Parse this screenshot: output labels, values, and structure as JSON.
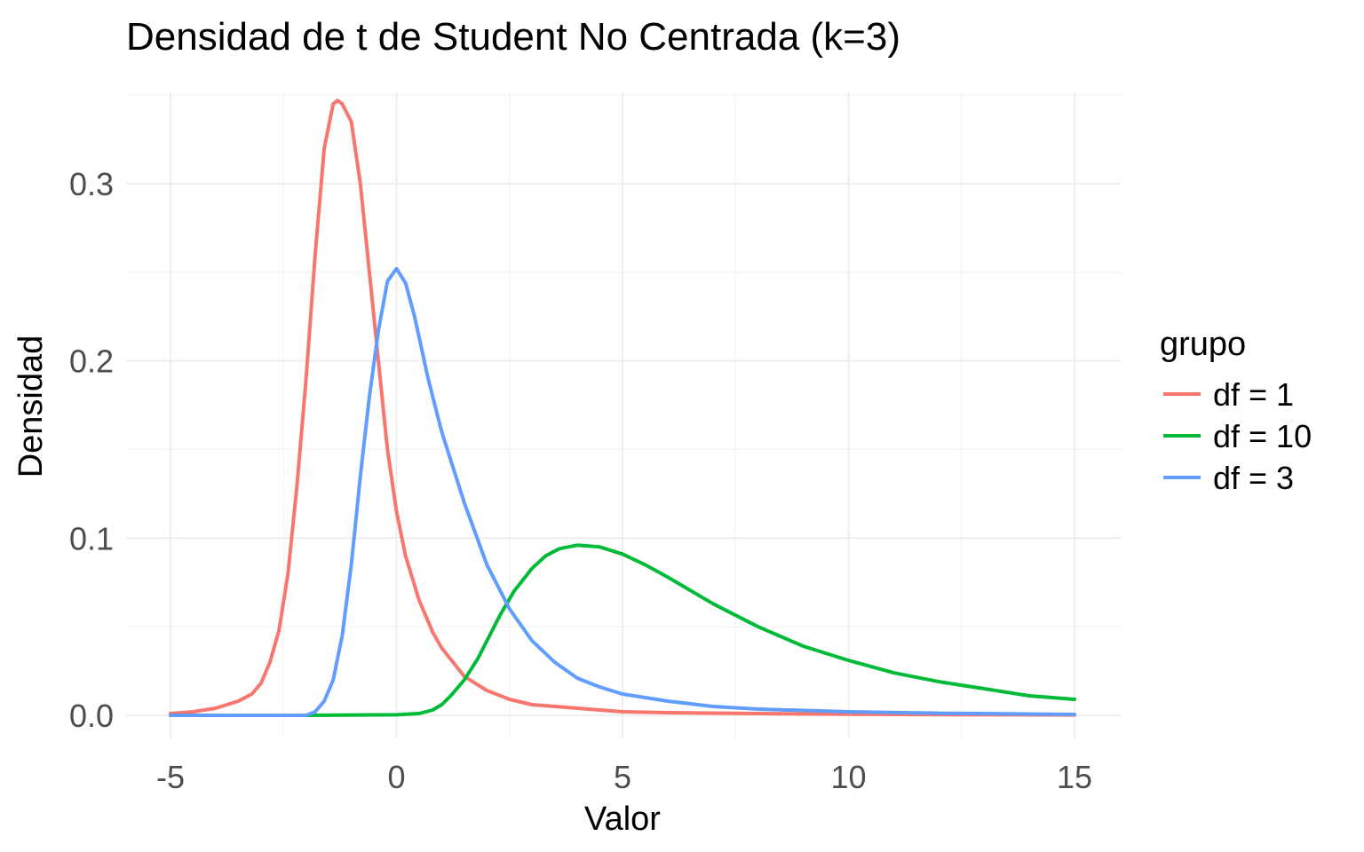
{
  "chart_data": {
    "type": "line",
    "title": "Densidad de t de Student No Centrada (k=3)",
    "xlabel": "Valor",
    "ylabel": "Densidad",
    "xlim": [
      -5,
      15
    ],
    "ylim": [
      0,
      0.35
    ],
    "x_ticks": [
      -5,
      0,
      5,
      10,
      15
    ],
    "x_tick_labels": [
      "-5",
      "0",
      "5",
      "10",
      "15"
    ],
    "y_ticks": [
      0,
      0.1,
      0.2,
      0.3
    ],
    "y_tick_labels": [
      "0.0",
      "0.1",
      "0.2",
      "0.3"
    ],
    "grid": true,
    "legend": {
      "title": "grupo",
      "placement": "right"
    },
    "series": [
      {
        "name": "df = 1",
        "color": "#F8766D",
        "x": [
          -5,
          -4.5,
          -4,
          -3.5,
          -3.2,
          -3,
          -2.8,
          -2.6,
          -2.4,
          -2.2,
          -2,
          -1.8,
          -1.6,
          -1.4,
          -1.3,
          -1.2,
          -1.1,
          -1,
          -0.8,
          -0.6,
          -0.4,
          -0.2,
          0,
          0.2,
          0.5,
          0.8,
          1,
          1.5,
          2,
          2.5,
          3,
          4,
          5,
          6,
          8,
          10,
          12,
          15
        ],
        "y": [
          0.001,
          0.002,
          0.004,
          0.008,
          0.012,
          0.018,
          0.03,
          0.048,
          0.08,
          0.13,
          0.19,
          0.26,
          0.32,
          0.345,
          0.347,
          0.345,
          0.34,
          0.335,
          0.3,
          0.25,
          0.2,
          0.15,
          0.115,
          0.09,
          0.065,
          0.047,
          0.038,
          0.022,
          0.014,
          0.009,
          0.006,
          0.004,
          0.002,
          0.0015,
          0.001,
          0.0006,
          0.0004,
          0.0002
        ]
      },
      {
        "name": "df = 10",
        "color": "#00BA38",
        "x": [
          -5,
          -2,
          0,
          0.5,
          0.8,
          1,
          1.2,
          1.5,
          1.8,
          2,
          2.3,
          2.6,
          3,
          3.3,
          3.6,
          4,
          4.5,
          5,
          5.5,
          6,
          7,
          8,
          9,
          10,
          11,
          12,
          13,
          14,
          15
        ],
        "y": [
          0,
          0,
          0.0003,
          0.001,
          0.003,
          0.006,
          0.011,
          0.02,
          0.032,
          0.042,
          0.057,
          0.07,
          0.083,
          0.09,
          0.094,
          0.096,
          0.095,
          0.091,
          0.085,
          0.078,
          0.063,
          0.05,
          0.039,
          0.031,
          0.024,
          0.019,
          0.015,
          0.011,
          0.009
        ]
      },
      {
        "name": "df = 3",
        "color": "#619CFF",
        "x": [
          -5,
          -2,
          -1.8,
          -1.6,
          -1.4,
          -1.2,
          -1,
          -0.8,
          -0.6,
          -0.4,
          -0.2,
          0,
          0.2,
          0.4,
          0.7,
          1,
          1.5,
          2,
          2.5,
          3,
          3.5,
          4,
          4.5,
          5,
          6,
          7,
          8,
          10,
          12,
          15
        ],
        "y": [
          0,
          0,
          0.002,
          0.008,
          0.02,
          0.045,
          0.085,
          0.135,
          0.18,
          0.217,
          0.245,
          0.252,
          0.244,
          0.225,
          0.19,
          0.16,
          0.12,
          0.085,
          0.06,
          0.042,
          0.03,
          0.021,
          0.016,
          0.012,
          0.008,
          0.005,
          0.0035,
          0.002,
          0.0012,
          0.0005
        ]
      }
    ]
  }
}
